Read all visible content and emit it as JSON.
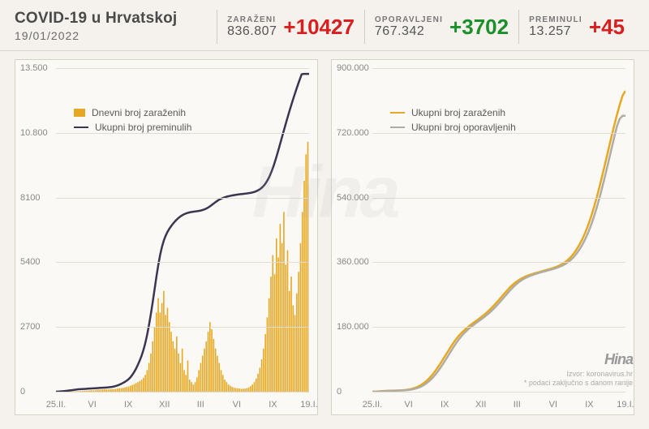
{
  "header": {
    "title": "COVID-19 u Hrvatskoj",
    "date": "19/01/2022",
    "stats": [
      {
        "label": "ZARAŽENI",
        "total": "836.807",
        "delta": "+10427",
        "color": "#d81e1e"
      },
      {
        "label": "OPORAVLJENI",
        "total": "767.342",
        "delta": "+3702",
        "color": "#1a8f2a"
      },
      {
        "label": "PREMINULI",
        "total": "13.257",
        "delta": "+45",
        "color": "#d81e1e"
      }
    ]
  },
  "left_chart": {
    "type": "bar+line",
    "yticks": [
      0,
      2700,
      5400,
      8100,
      10800,
      13500
    ],
    "ytick_labels": [
      "0",
      "2700",
      "5400",
      "8100",
      "10.800",
      "13.500"
    ],
    "ymax": 13500,
    "xticks": [
      "25.II.",
      "VI",
      "IX",
      "XII",
      "III",
      "VI",
      "IX",
      "19.I."
    ],
    "bar_color": "#e6a822",
    "line_color": "#3a3550",
    "grid_color": "#e0dcd2",
    "legend": [
      {
        "type": "swatch",
        "color": "#e6a822",
        "label": "Dnevni broj zaraženih"
      },
      {
        "type": "line",
        "color": "#3a3550",
        "label": "Ukupni broj preminulih"
      }
    ],
    "bars": [
      30,
      30,
      40,
      40,
      50,
      50,
      60,
      50,
      40,
      30,
      20,
      20,
      20,
      30,
      30,
      40,
      40,
      50,
      50,
      60,
      60,
      70,
      80,
      80,
      90,
      90,
      100,
      100,
      100,
      100,
      110,
      110,
      120,
      130,
      140,
      150,
      160,
      180,
      200,
      220,
      250,
      280,
      320,
      360,
      400,
      450,
      500,
      580,
      700,
      900,
      1200,
      1600,
      2100,
      2700,
      3300,
      3900,
      3300,
      3700,
      4200,
      3200,
      3500,
      2900,
      2500,
      2100,
      1800,
      2300,
      1600,
      1200,
      1800,
      900,
      700,
      1300,
      500,
      400,
      300,
      400,
      600,
      900,
      1200,
      1500,
      1800,
      2100,
      2500,
      2900,
      2600,
      2200,
      1800,
      1500,
      1200,
      900,
      700,
      500,
      400,
      300,
      250,
      200,
      170,
      150,
      140,
      130,
      120,
      120,
      130,
      150,
      180,
      230,
      300,
      400,
      550,
      750,
      1000,
      1350,
      1800,
      2400,
      3100,
      3900,
      4800,
      5700,
      4900,
      6400,
      5600,
      7000,
      6200,
      7500,
      5300,
      5900,
      4200,
      4800,
      3600,
      3200,
      4100,
      5000,
      6200,
      7500,
      8800,
      9900,
      10427
    ],
    "line": [
      0,
      5,
      10,
      15,
      20,
      30,
      40,
      50,
      60,
      70,
      80,
      90,
      100,
      105,
      110,
      115,
      120,
      125,
      130,
      135,
      140,
      145,
      150,
      155,
      160,
      165,
      170,
      175,
      180,
      190,
      200,
      215,
      235,
      260,
      290,
      325,
      365,
      410,
      460,
      520,
      600,
      700,
      820,
      960,
      1120,
      1300,
      1500,
      1740,
      2030,
      2380,
      2790,
      3250,
      3750,
      4280,
      4810,
      5300,
      5720,
      6060,
      6320,
      6520,
      6680,
      6810,
      6920,
      7020,
      7110,
      7190,
      7260,
      7320,
      7370,
      7410,
      7440,
      7465,
      7485,
      7500,
      7512,
      7522,
      7532,
      7545,
      7562,
      7584,
      7613,
      7650,
      7695,
      7748,
      7806,
      7866,
      7924,
      7978,
      8024,
      8062,
      8093,
      8119,
      8141,
      8160,
      8177,
      8192,
      8206,
      8218,
      8229,
      8239,
      8248,
      8257,
      8266,
      8276,
      8288,
      8303,
      8322,
      8347,
      8379,
      8420,
      8472,
      8539,
      8625,
      8734,
      8868,
      9029,
      9219,
      9437,
      9680,
      9942,
      10216,
      10495,
      10775,
      11052,
      11324,
      11590,
      11849,
      12100,
      12344,
      12580,
      12808,
      13028,
      13239,
      13257,
      13257,
      13257,
      13257
    ]
  },
  "right_chart": {
    "type": "line",
    "yticks": [
      0,
      180000,
      360000,
      540000,
      720000,
      900000
    ],
    "ytick_labels": [
      "0",
      "180.000",
      "360.000",
      "540.000",
      "720.000",
      "900.000"
    ],
    "ymax": 900000,
    "xticks": [
      "25.II.",
      "VI",
      "IX",
      "XII",
      "III",
      "VI",
      "IX",
      "19.I."
    ],
    "grid_color": "#e0dcd2",
    "legend": [
      {
        "type": "line",
        "color": "#e6a822",
        "label": "Ukupni broj zaraženih"
      },
      {
        "type": "line",
        "color": "#b0aca2",
        "label": "Ukupni broj oporavljenih"
      }
    ],
    "series": [
      {
        "color": "#e6a822",
        "width": 2.5,
        "points": [
          100,
          400,
          900,
          1500,
          2100,
          2500,
          2800,
          3000,
          3200,
          3500,
          3900,
          4500,
          5400,
          6700,
          8600,
          11200,
          14600,
          19000,
          24500,
          31200,
          39200,
          48500,
          59000,
          70500,
          82800,
          95600,
          108600,
          121400,
          133600,
          144800,
          154800,
          163600,
          171400,
          178400,
          184800,
          190800,
          196600,
          202400,
          208400,
          214800,
          221800,
          229400,
          237600,
          246300,
          255400,
          264700,
          274000,
          283000,
          291400,
          298900,
          305400,
          310900,
          315500,
          319400,
          322700,
          325600,
          328200,
          330600,
          332900,
          335100,
          337300,
          339500,
          341800,
          344300,
          347200,
          350700,
          355000,
          360300,
          366800,
          374700,
          384200,
          395500,
          408800,
          424300,
          442200,
          462700,
          485900,
          511800,
          540200,
          570800,
          603200,
          636800,
          670900,
          704800,
          737800,
          769100,
          797900,
          823600,
          836807
        ]
      },
      {
        "color": "#b0aca2",
        "width": 2.5,
        "points": [
          0,
          100,
          400,
          900,
          1500,
          2000,
          2400,
          2700,
          2900,
          3100,
          3400,
          3800,
          4400,
          5300,
          6600,
          8500,
          11100,
          14500,
          18900,
          24400,
          31100,
          39100,
          48400,
          58900,
          70400,
          82700,
          95500,
          108500,
          121300,
          133500,
          144700,
          154700,
          163500,
          171300,
          178300,
          184700,
          190700,
          196500,
          202300,
          208300,
          214700,
          221700,
          229300,
          237500,
          246200,
          255300,
          264600,
          273900,
          282900,
          291300,
          298800,
          305300,
          310800,
          315400,
          319300,
          322600,
          325500,
          328100,
          330500,
          332800,
          335000,
          337200,
          339400,
          341700,
          344200,
          347100,
          350600,
          354900,
          360200,
          366700,
          374600,
          384100,
          395400,
          408700,
          424200,
          442100,
          462600,
          485800,
          511700,
          540100,
          570700,
          603100,
          636700,
          670800,
          704700,
          737700,
          759000,
          767342,
          767342
        ]
      }
    ]
  },
  "watermark": "Hina",
  "footer": {
    "logo": "Hina",
    "source": "Izvor: koronavirus.hr",
    "note": "* podaci zaključno s danom ranije"
  }
}
